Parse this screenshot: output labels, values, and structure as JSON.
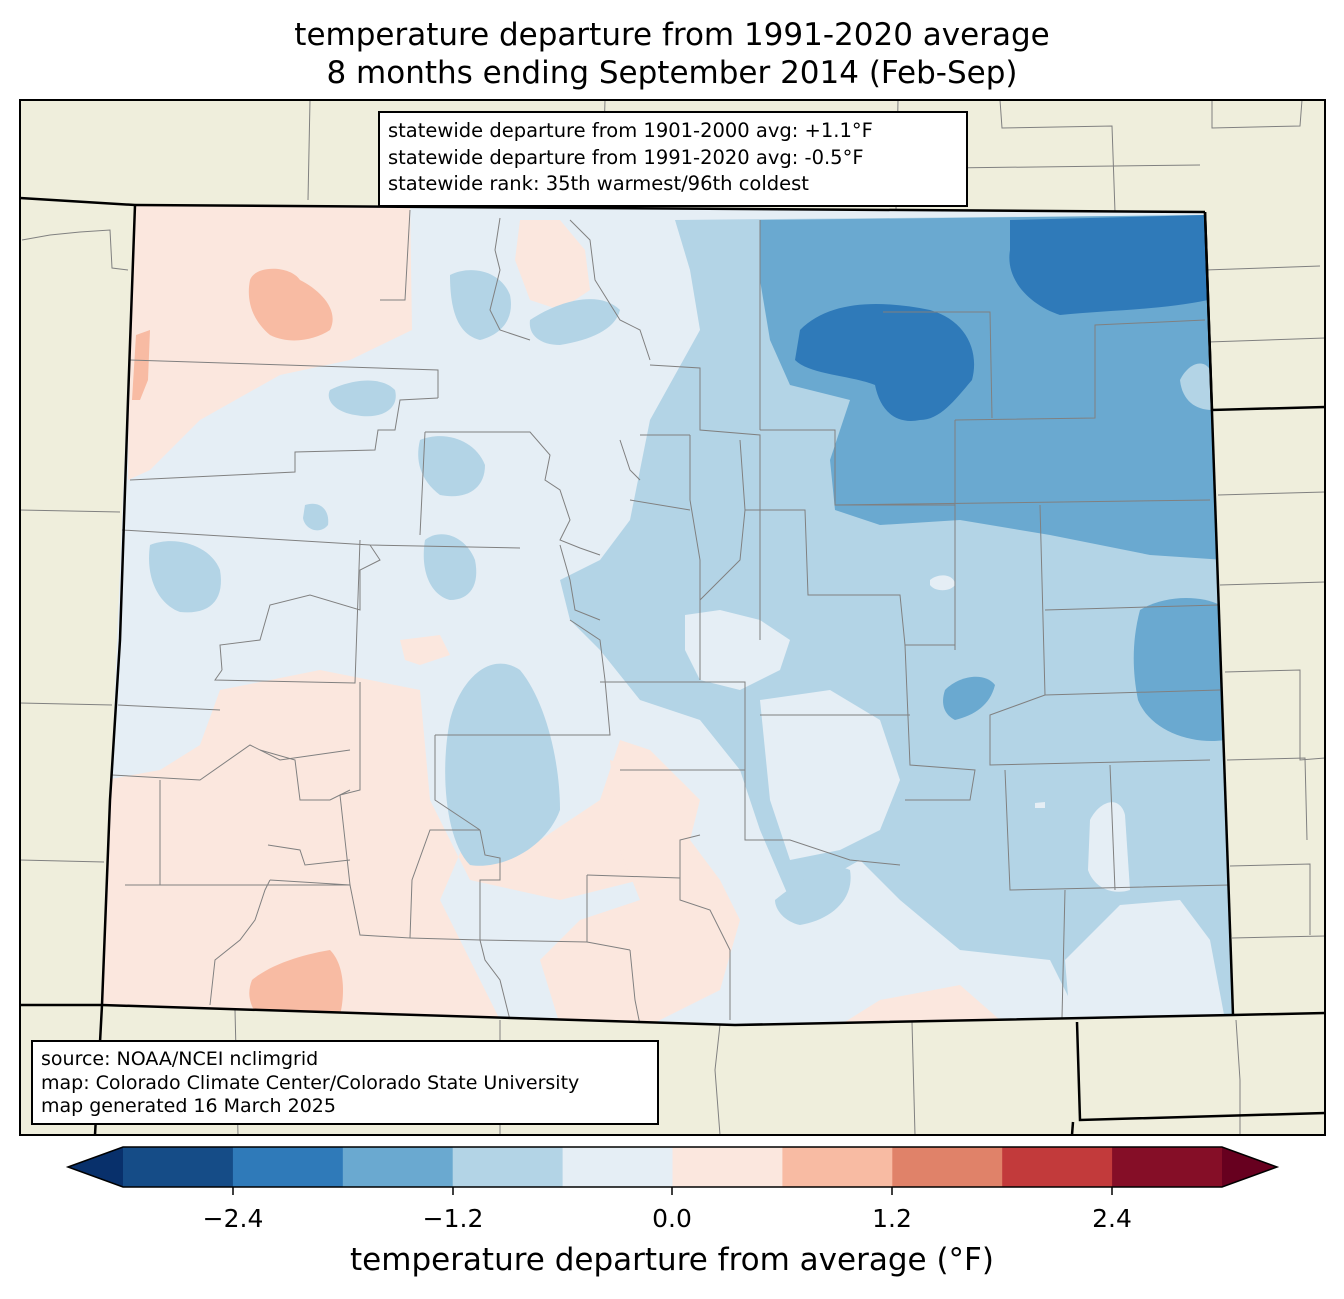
{
  "title": {
    "line1": "temperature departure from 1991-2020 average",
    "line2": "8 months ending September 2014 (Feb-Sep)"
  },
  "stats_box": {
    "line1": "statewide departure from 1901-2000 avg: +1.1°F",
    "line2": "statewide departure from 1991-2020 avg: -0.5°F",
    "line3": "statewide rank: 35th warmest/96th coldest"
  },
  "source_box": {
    "line1": "source: NOAA/NCEI nclimgrid",
    "line2": "map: Colorado Climate Center/Colorado State University",
    "line3": "map generated 16 March 2025"
  },
  "colorbar": {
    "label": "temperature departure from average (°F)",
    "ticks": [
      "−2.4",
      "−1.2",
      "0.0",
      "1.2",
      "2.4"
    ],
    "colors": [
      "#08306b",
      "#154c87",
      "#2f7ab9",
      "#6aa9d0",
      "#b3d4e6",
      "#e5eef5",
      "#fbe7de",
      "#f8bba3",
      "#e08269",
      "#c23a3b",
      "#850e27",
      "#67001f"
    ]
  },
  "colors": {
    "land_background": "#efeedc",
    "state_border": "#000000",
    "county_border": "#808080"
  }
}
